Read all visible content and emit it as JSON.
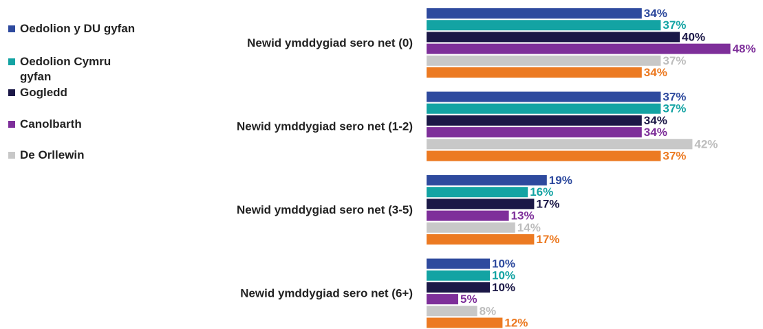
{
  "chart_data": {
    "type": "bar",
    "orientation": "horizontal",
    "categories": [
      "Newid ymddygiad sero net (0)",
      "Newid ymddygiad sero net (1-2)",
      "Newid ymddygiad sero net (3-5)",
      "Newid ymddygiad sero net (6+)"
    ],
    "series": [
      {
        "name": "Oedolion y DU gyfan",
        "color": "#2e4a9e",
        "values": [
          34,
          37,
          19,
          10
        ],
        "value_labels": [
          "34%",
          "37%",
          "19%",
          "10%"
        ]
      },
      {
        "name": "Oedolion Cymru gyfan",
        "color": "#13a3a3",
        "values": [
          37,
          37,
          16,
          10
        ],
        "value_labels": [
          "37%",
          "37%",
          "16%",
          "10%"
        ]
      },
      {
        "name": "Gogledd",
        "color": "#1b1847",
        "values": [
          40,
          34,
          17,
          10
        ],
        "value_labels": [
          "40%",
          "34%",
          "17%",
          "10%"
        ]
      },
      {
        "name": "Canolbarth",
        "color": "#7e2f9a",
        "values": [
          48,
          34,
          13,
          5
        ],
        "value_labels": [
          "48%",
          "34%",
          "13%",
          "5%"
        ]
      },
      {
        "name": "De Orllewin",
        "color": "#c8c8c8",
        "values": [
          37,
          42,
          14,
          8
        ],
        "value_labels": [
          "37%",
          "42%",
          "14%",
          "8%"
        ]
      },
      {
        "color": "#ec7a22",
        "values": [
          34,
          37,
          17,
          12
        ],
        "value_labels": [
          "34%",
          "37%",
          "17%",
          "12%"
        ]
      }
    ],
    "legend": "left"
  }
}
